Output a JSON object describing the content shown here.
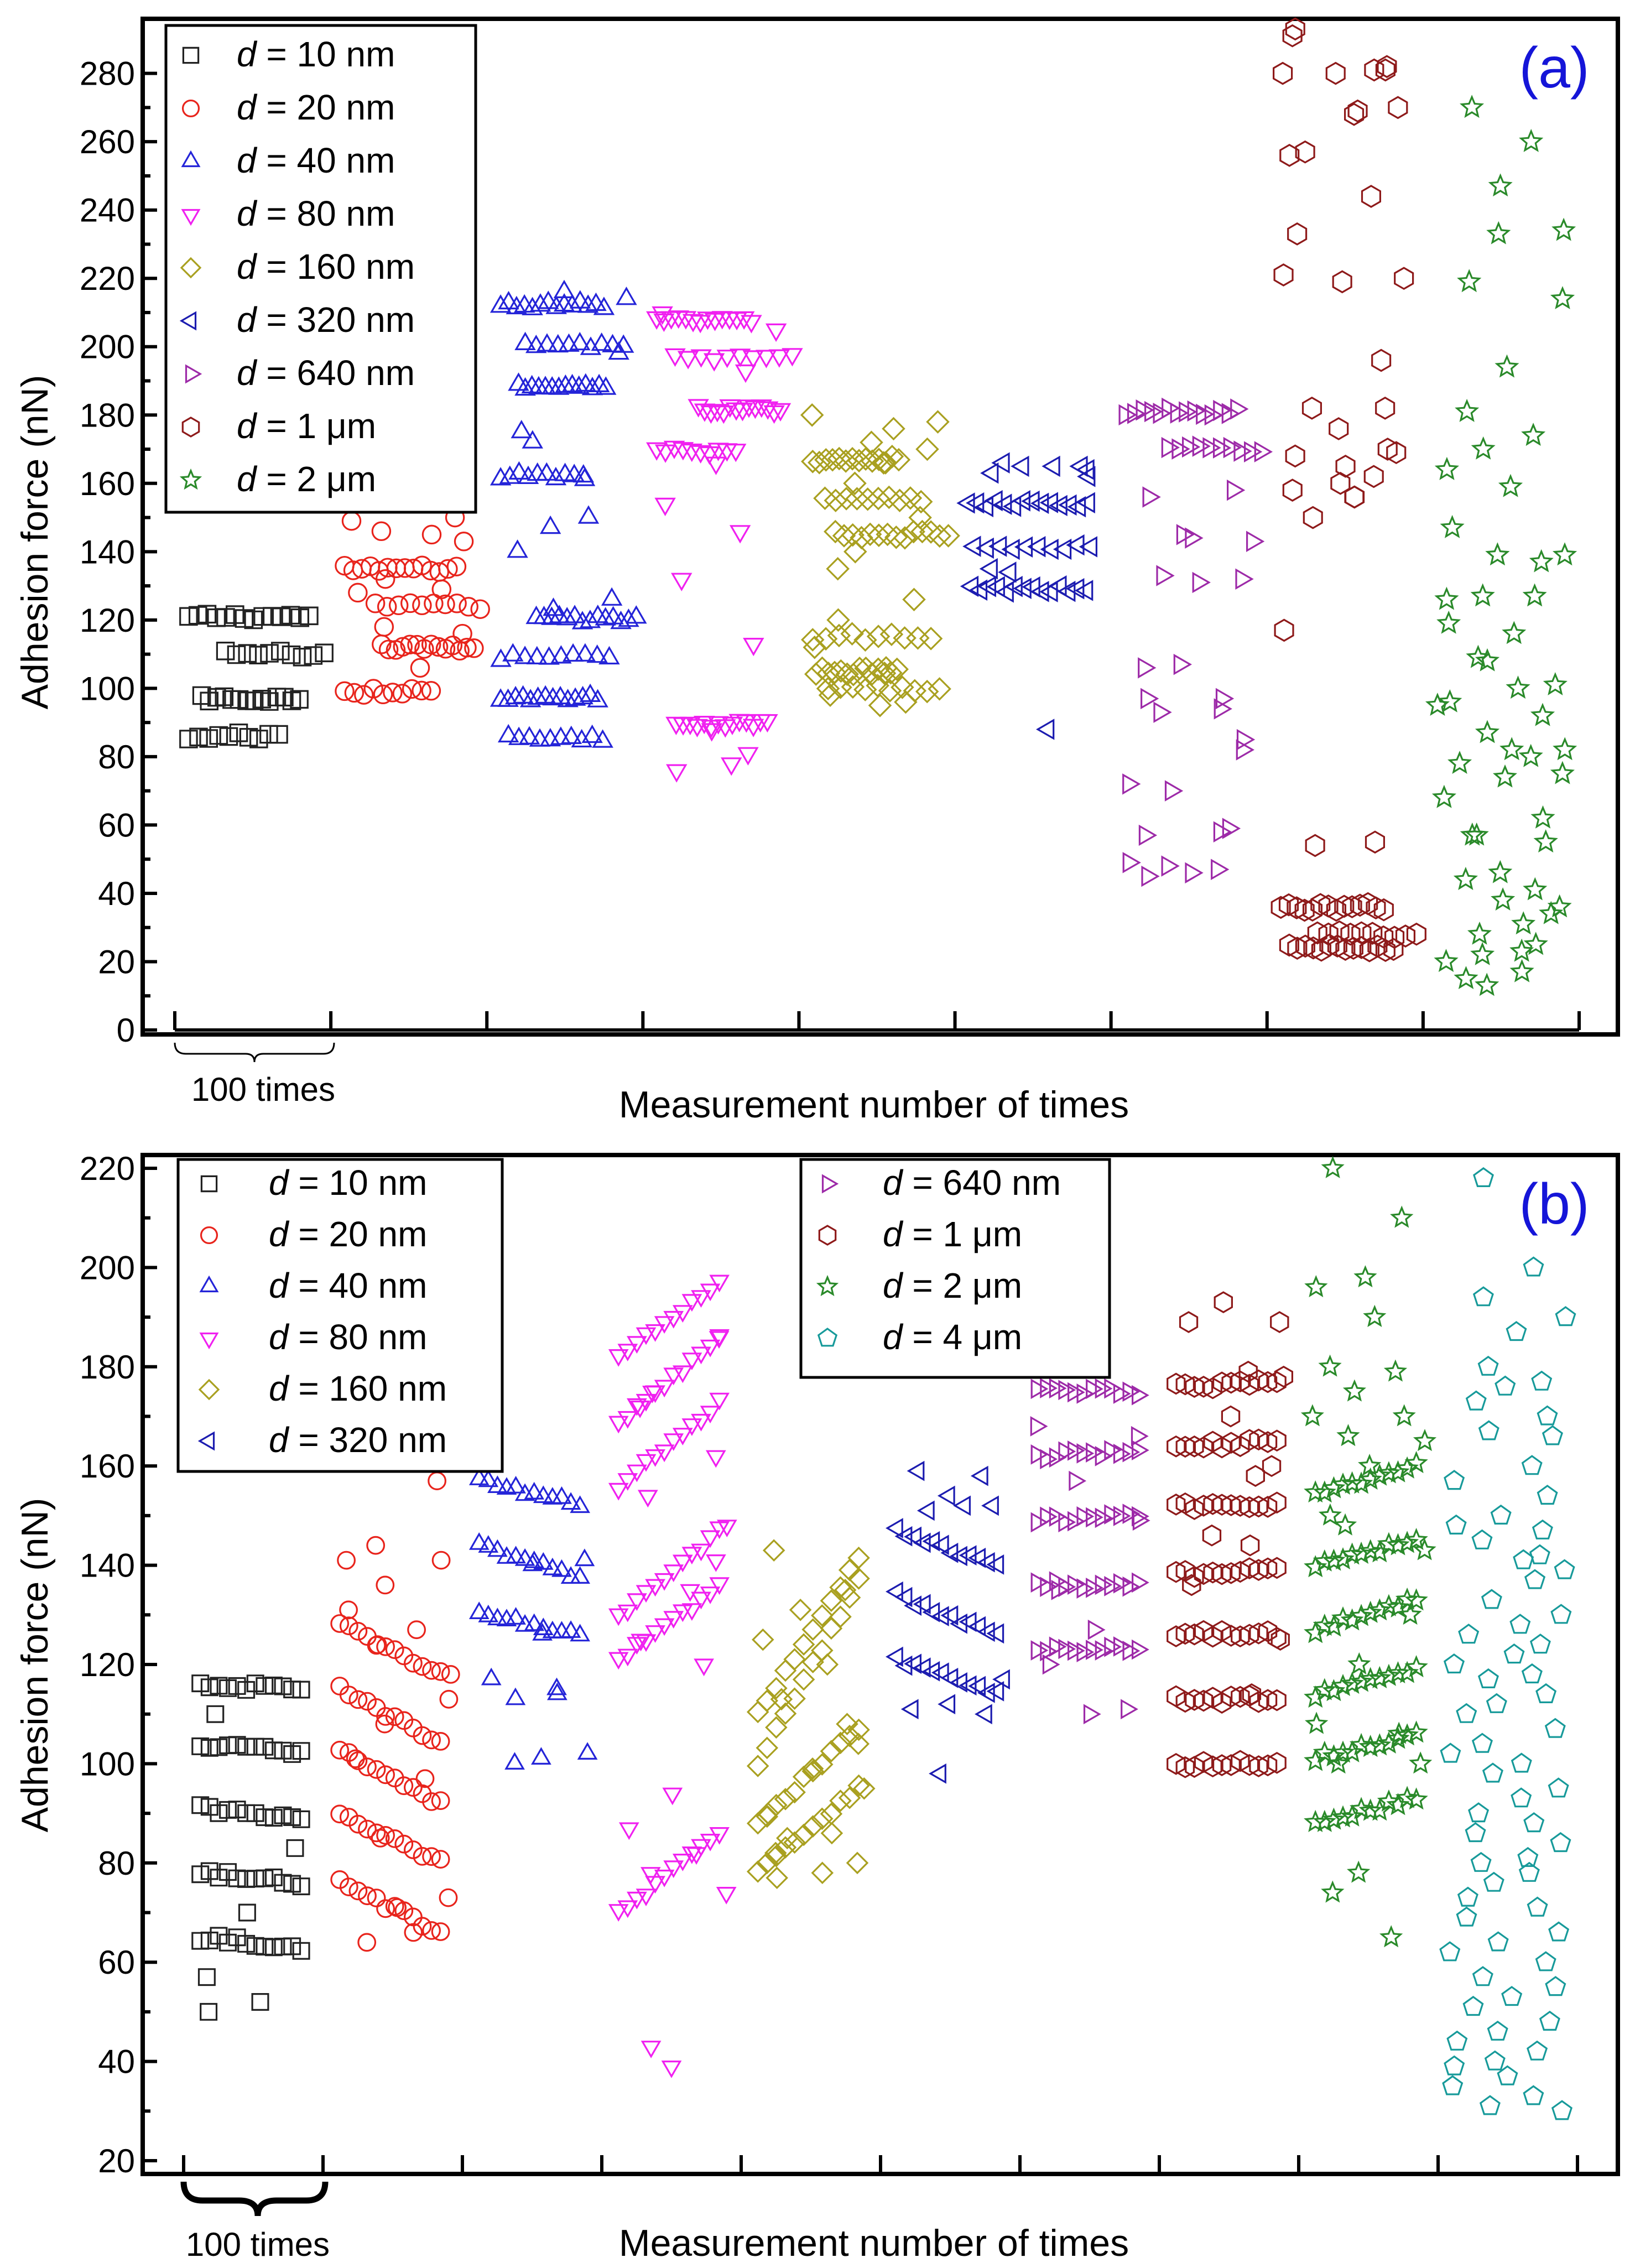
{
  "chart_data": [
    {
      "panel": "(a)",
      "type": "scatter",
      "xlabel": "Measurement number of times",
      "ylabel": "Adhesion force (nN)",
      "ylim": [
        0,
        295
      ],
      "yticks": [
        0,
        20,
        40,
        60,
        80,
        100,
        120,
        140,
        160,
        180,
        200,
        220,
        240,
        260,
        280
      ],
      "x_groups": 9,
      "group_size": 100,
      "x_note": "100 times",
      "legend_position": "top-left",
      "series": [
        {
          "name": "d = 10 nm",
          "prefix": "d",
          "suffix": " = 10 nm",
          "marker": "square",
          "color": "#222222",
          "bands": [
            121,
            110,
            97,
            86
          ],
          "scatter": []
        },
        {
          "name": "d = 20 nm",
          "prefix": "d",
          "suffix": " = 20 nm",
          "marker": "circle",
          "color": "#e8241c",
          "bands": [
            135,
            124,
            112,
            99
          ],
          "scatter": [
            149,
            150,
            146,
            143,
            129,
            118,
            116,
            106,
            128,
            145,
            132
          ]
        },
        {
          "name": "d = 40 nm",
          "prefix": "d",
          "suffix": " = 40 nm",
          "marker": "triangle-up",
          "color": "#2424d8",
          "bands": [
            212,
            200,
            188,
            162,
            120,
            109,
            97,
            85
          ],
          "scatter": [
            175,
            161,
            147,
            140,
            150,
            172,
            198,
            216,
            214,
            126,
            123
          ]
        },
        {
          "name": "d = 80 nm",
          "prefix": "d",
          "suffix": " = 80 nm",
          "marker": "triangle-down",
          "color": "#f020f0",
          "bands": [
            208,
            197,
            182,
            170,
            90
          ],
          "scatter": [
            210,
            193,
            166,
            154,
            146,
            132,
            113,
            78,
            76,
            81,
            88,
            205
          ]
        },
        {
          "name": "d = 160 nm",
          "prefix": "d",
          "suffix": " = 160 nm",
          "marker": "diamond",
          "color": "#a9a020",
          "bands": [
            167,
            155,
            145,
            115,
            105,
            100
          ],
          "scatter": [
            180,
            176,
            172,
            170,
            166,
            160,
            150,
            140,
            135,
            126,
            120,
            112,
            106,
            98,
            96,
            95,
            178
          ]
        },
        {
          "name": "d = 320 nm",
          "prefix": "d",
          "suffix": " = 320 nm",
          "marker": "triangle-left",
          "color": "#1c1cb0",
          "bands": [
            154,
            141,
            129
          ],
          "scatter": [
            166,
            165,
            165,
            164,
            165,
            163,
            162,
            134,
            135,
            88
          ]
        },
        {
          "name": "d = 640 nm",
          "prefix": "d",
          "suffix": " = 640 nm",
          "marker": "triangle-right",
          "color": "#9d2aa8",
          "bands": [
            181,
            170
          ],
          "scatter": [
            156,
            158,
            144,
            143,
            131,
            133,
            132,
            145,
            106,
            94,
            93,
            82,
            107,
            97,
            85,
            70,
            72,
            58,
            57,
            59,
            46,
            45,
            47,
            48,
            49,
            97
          ]
        },
        {
          "name": "d = 1 μm",
          "prefix": "d",
          "suffix": " = 1 μm",
          "marker": "hexagon",
          "color": "#8e1a1a",
          "bands": [
            36,
            28,
            24
          ],
          "scatter": [
            280,
            282,
            280,
            270,
            269,
            291,
            281,
            268,
            293,
            281,
            257,
            256,
            244,
            233,
            220,
            219,
            221,
            196,
            182,
            170,
            165,
            168,
            162,
            160,
            158,
            156,
            150,
            169,
            156,
            117,
            55,
            54,
            182,
            176
          ]
        },
        {
          "name": "d = 2 μm",
          "prefix": "d",
          "suffix": " = 2 μm",
          "marker": "star",
          "color": "#2a8a2a",
          "bands": [],
          "scatter": [
            270,
            260,
            247,
            234,
            233,
            219,
            214,
            194,
            181,
            174,
            170,
            164,
            159,
            147,
            137,
            127,
            119,
            116,
            109,
            101,
            100,
            95,
            92,
            87,
            82,
            80,
            78,
            75,
            74,
            68,
            62,
            57,
            55,
            46,
            44,
            41,
            38,
            34,
            31,
            28,
            25,
            22,
            20,
            17,
            13,
            139,
            139,
            126,
            127,
            108,
            96,
            82,
            57,
            36,
            23,
            15
          ]
        }
      ]
    },
    {
      "panel": "(b)",
      "type": "scatter",
      "xlabel": "Measurement number of times",
      "ylabel": "Adhesion force (nN)",
      "ylim": [
        20,
        222
      ],
      "yticks": [
        20,
        40,
        60,
        80,
        100,
        120,
        140,
        160,
        180,
        200,
        220
      ],
      "x_groups": 10,
      "group_size": 100,
      "x_note": "100 times",
      "legend_position": "top-left and top-center",
      "series": [
        {
          "name": "d = 10 nm",
          "prefix": "d",
          "suffix": " = 10 nm",
          "marker": "square",
          "color": "#222222",
          "trend": [
            [
              116,
              115
            ],
            [
              104,
              102
            ],
            [
              91,
              89
            ],
            [
              78,
              76
            ],
            [
              65,
              63
            ]
          ],
          "scatter": [
            110,
            83,
            70,
            57,
            52,
            50
          ]
        },
        {
          "name": "d = 20 nm",
          "prefix": "d",
          "suffix": " = 20 nm",
          "marker": "circle",
          "color": "#e8241c",
          "trend": [
            [
              128,
              118
            ],
            [
              115,
              104
            ],
            [
              103,
              92
            ],
            [
              90,
              80
            ],
            [
              76,
              66
            ]
          ],
          "scatter": [
            141,
            141,
            136,
            131,
            127,
            124,
            113,
            108,
            101,
            97,
            85,
            73,
            71,
            64,
            157,
            144,
            118,
            66
          ]
        },
        {
          "name": "d = 40 nm",
          "prefix": "d",
          "suffix": " = 40 nm",
          "marker": "triangle-up",
          "color": "#2424d8",
          "trend": [
            [
              157,
              152
            ],
            [
              144,
              137
            ],
            [
              130,
              126
            ]
          ],
          "scatter": [
            117,
            114,
            113,
            102,
            101,
            100,
            115,
            140,
            141,
            126
          ]
        },
        {
          "name": "d = 80 nm",
          "prefix": "d",
          "suffix": " = 80 nm",
          "marker": "triangle-down",
          "color": "#f020f0",
          "trend": [
            [
              182,
              197
            ],
            [
              169,
              186
            ],
            [
              156,
              173
            ],
            [
              130,
              147
            ],
            [
              121,
              136
            ],
            [
              70,
              86
            ]
          ],
          "scatter": [
            172,
            162,
            154,
            141,
            135,
            125,
            120,
            94,
            87,
            82,
            78,
            74,
            39,
            43,
            186,
            175,
            148
          ]
        },
        {
          "name": "d = 160 nm",
          "prefix": "d",
          "suffix": " = 160 nm",
          "marker": "diamond",
          "color": "#a9a020",
          "trend": [
            [
              110,
              142
            ],
            [
              100,
              137
            ],
            [
              88,
              107
            ],
            [
              78,
              95
            ]
          ],
          "scatter": [
            143,
            135,
            131,
            125,
            120,
            113,
            104,
            99,
            90,
            86,
            82,
            80,
            78,
            77,
            108,
            85,
            95
          ]
        },
        {
          "name": "d = 320 nm",
          "prefix": "d",
          "suffix": " = 320 nm",
          "marker": "triangle-left",
          "color": "#1c1cb0",
          "trend": [
            [
              147,
              140
            ],
            [
              134,
              126
            ],
            [
              121,
              114
            ]
          ],
          "scatter": [
            159,
            158,
            154,
            152,
            152,
            151,
            117,
            112,
            111,
            110,
            98
          ]
        },
        {
          "name": "d = 640 nm",
          "prefix": "d",
          "suffix": " = 640 nm",
          "marker": "triangle-right",
          "color": "#9d2aa8",
          "trend": [
            [
              175,
              175
            ],
            [
              162,
              163
            ],
            [
              149,
              150
            ],
            [
              136,
              136
            ],
            [
              123,
              123
            ]
          ],
          "scatter": [
            168,
            166,
            157,
            149,
            127,
            120,
            111,
            110,
            135
          ]
        },
        {
          "name": "d = 1 μm",
          "prefix": "d",
          "suffix": " = 1 μm",
          "marker": "hexagon",
          "color": "#8e1a1a",
          "trend": [
            [
              176,
              177
            ],
            [
              164,
              165
            ],
            [
              152,
              152
            ],
            [
              138,
              139
            ],
            [
              126,
              126
            ],
            [
              113,
              113
            ],
            [
              100,
              100
            ]
          ],
          "scatter": [
            189,
            179,
            170,
            160,
            144,
            136,
            189,
            193,
            178,
            158,
            146,
            125,
            114
          ]
        },
        {
          "name": "d = 2 μm",
          "prefix": "d",
          "suffix": " = 2 μm",
          "marker": "star",
          "color": "#2a8a2a",
          "trend": [
            [
              154,
              160
            ],
            [
              140,
              145
            ],
            [
              127,
              133
            ],
            [
              114,
              119
            ],
            [
              101,
              106
            ],
            [
              88,
              93
            ]
          ],
          "scatter": [
            220,
            210,
            198,
            196,
            190,
            180,
            179,
            175,
            170,
            170,
            166,
            165,
            160,
            150,
            130,
            120,
            108,
            106,
            100,
            100,
            78,
            74,
            65,
            148,
            143
          ]
        },
        {
          "name": "d = 4 μm",
          "prefix": "d",
          "suffix": " = 4 μm",
          "marker": "pentagon",
          "color": "#179a9a",
          "trend": [],
          "scatter": [
            218,
            200,
            194,
            190,
            187,
            180,
            177,
            176,
            173,
            170,
            167,
            166,
            160,
            157,
            154,
            150,
            148,
            147,
            145,
            142,
            141,
            139,
            137,
            133,
            130,
            128,
            126,
            124,
            122,
            120,
            118,
            117,
            114,
            112,
            110,
            107,
            104,
            102,
            100,
            98,
            95,
            93,
            90,
            88,
            86,
            84,
            81,
            80,
            78,
            76,
            73,
            71,
            69,
            66,
            64,
            62,
            60,
            57,
            55,
            53,
            51,
            48,
            46,
            44,
            42,
            40,
            39,
            37,
            35,
            33,
            31,
            30
          ]
        }
      ]
    }
  ]
}
